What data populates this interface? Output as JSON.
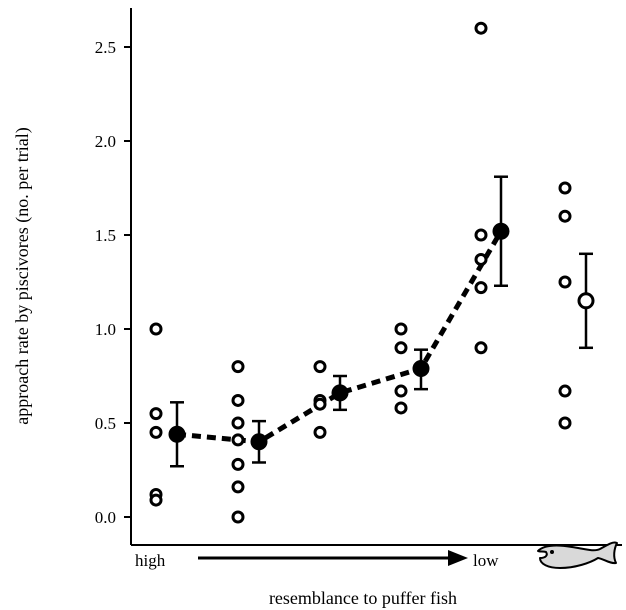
{
  "chart_data": {
    "type": "scatter",
    "title": "",
    "ylabel": "approach rate by piscivores (no. per trial)",
    "xlabel": "resemblance to puffer fish",
    "x_start_label": "high",
    "x_end_label": "low",
    "ylim": [
      0,
      2.6
    ],
    "yticks": [
      0.0,
      0.5,
      1.0,
      1.5,
      2.0,
      2.5
    ],
    "ytick_labels": [
      "0.0",
      "0.5",
      "1.0",
      "1.5",
      "2.0",
      "2.5"
    ],
    "grid": false,
    "legend": "none",
    "groups": [
      {
        "points": [
          1.0,
          0.55,
          0.45,
          0.12,
          0.09
        ],
        "mean": 0.44,
        "err_low": 0.27,
        "err_high": 0.61
      },
      {
        "points": [
          0.8,
          0.62,
          0.5,
          0.41,
          0.28,
          0.16,
          0.0
        ],
        "mean": 0.4,
        "err_low": 0.29,
        "err_high": 0.51
      },
      {
        "points": [
          0.8,
          0.62,
          0.6,
          0.45
        ],
        "mean": 0.66,
        "err_low": 0.57,
        "err_high": 0.75
      },
      {
        "points": [
          1.0,
          0.9,
          0.67,
          0.58
        ],
        "mean": 0.79,
        "err_low": 0.68,
        "err_high": 0.89
      },
      {
        "points": [
          2.6,
          1.5,
          1.37,
          1.22,
          0.9
        ],
        "mean": 1.52,
        "err_low": 1.23,
        "err_high": 1.81
      },
      {
        "points": [
          1.75,
          1.6,
          1.25,
          0.67,
          0.5
        ],
        "mean": 1.15,
        "err_low": 0.9,
        "err_high": 1.4
      }
    ],
    "trend_line_groups": [
      0,
      1,
      2,
      3,
      4
    ],
    "colors": {
      "ink": "#000000",
      "marker_fill": "#ffffff",
      "fish_fill": "#d9d9d9"
    },
    "icons": {
      "x_end": "puffer-fish-icon"
    }
  }
}
